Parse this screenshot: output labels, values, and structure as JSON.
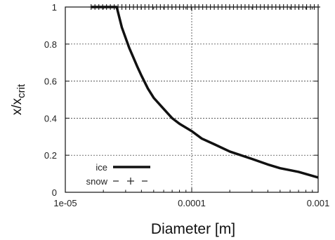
{
  "chart_data": {
    "type": "line",
    "title": "",
    "xlabel": "Diameter [m]",
    "ylabel_main": "x/x",
    "ylabel_sub": "crit",
    "xscale": "log",
    "xlim": [
      1e-05,
      0.001
    ],
    "ylim": [
      0,
      1
    ],
    "grid": true,
    "legend_position": "bottom-left",
    "x_ticks": [
      {
        "value": 1e-05,
        "label": "1e-05"
      },
      {
        "value": 0.0001,
        "label": "0.0001"
      },
      {
        "value": 0.001,
        "label": "0.001"
      }
    ],
    "y_ticks": [
      {
        "value": 0,
        "label": "0"
      },
      {
        "value": 0.2,
        "label": "0.2"
      },
      {
        "value": 0.4,
        "label": "0.4"
      },
      {
        "value": 0.6,
        "label": "0.6"
      },
      {
        "value": 0.8,
        "label": "0.8"
      },
      {
        "value": 1,
        "label": "1"
      }
    ],
    "series": [
      {
        "name": "ice",
        "style": "solid-thick",
        "x": [
          1.6e-05,
          2e-05,
          2.4e-05,
          2.55e-05,
          2.8e-05,
          3.2e-05,
          3.7e-05,
          4e-05,
          4.5e-05,
          5e-05,
          6e-05,
          7e-05,
          8e-05,
          0.0001,
          0.00012,
          0.00015,
          0.0002,
          0.0003,
          0.0004,
          0.0005,
          0.0007,
          0.001
        ],
        "y": [
          1,
          1,
          1,
          1,
          0.89,
          0.78,
          0.68,
          0.63,
          0.56,
          0.51,
          0.45,
          0.4,
          0.37,
          0.33,
          0.29,
          0.26,
          0.22,
          0.18,
          0.15,
          0.13,
          0.11,
          0.08
        ]
      },
      {
        "name": "snow",
        "style": "plus-markers",
        "x_range": [
          1.6e-05,
          0.001
        ],
        "y": 1,
        "count": 60
      }
    ]
  }
}
